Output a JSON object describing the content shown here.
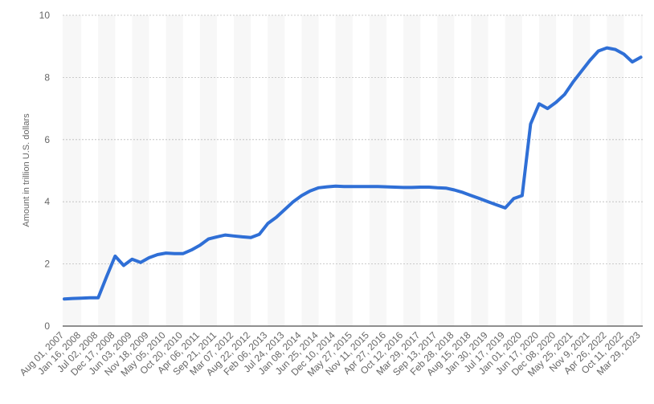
{
  "chart_data": {
    "type": "line",
    "y_label": "Amount in trillion U.S. dollars",
    "categories": [
      "Aug 01, 2007",
      null,
      "Jan 16, 2008",
      null,
      "Jul 02, 2008",
      null,
      "Dec 17, 2008",
      null,
      "Jun 03, 2009",
      null,
      "Nov 18, 2009",
      null,
      "May 05, 2010",
      null,
      "Oct 20, 2010",
      null,
      "Apr 06, 2011",
      null,
      "Sep 21, 2011",
      null,
      "Mar 07, 2012",
      null,
      "Aug 22, 2012",
      null,
      "Feb 06, 2013",
      null,
      "Jul 24, 2013",
      null,
      "Jan 08, 2014",
      null,
      "Jun 25, 2014",
      null,
      "Dec 10, 2014",
      null,
      "May 27, 2015",
      null,
      "Nov 11, 2015",
      null,
      "Apr 27, 2016",
      null,
      "Oct 12, 2016",
      null,
      "Mar 29, 2017",
      null,
      "Sep 13, 2017",
      null,
      "Feb 28, 2018",
      null,
      "Aug 15, 2018",
      null,
      "Jan 30, 2019",
      null,
      "Jul 17, 2019",
      null,
      "Jan 01, 2020",
      null,
      "Jun 17, 2020",
      null,
      "Dec 08, 2020",
      null,
      "May 25, 2021",
      null,
      "Nov 9, 2021",
      null,
      "Apr 26, 2022",
      null,
      "Oct 11, 2022",
      null,
      "Mar 29, 2023"
    ],
    "values": [
      0.87,
      0.89,
      0.9,
      0.91,
      0.91,
      1.6,
      2.25,
      1.95,
      2.15,
      2.05,
      2.2,
      2.3,
      2.35,
      2.33,
      2.33,
      2.45,
      2.6,
      2.8,
      2.87,
      2.93,
      2.9,
      2.87,
      2.85,
      2.95,
      3.3,
      3.5,
      3.75,
      4.0,
      4.2,
      4.35,
      4.45,
      4.48,
      4.5,
      4.49,
      4.49,
      4.49,
      4.49,
      4.49,
      4.48,
      4.47,
      4.46,
      4.46,
      4.47,
      4.47,
      4.45,
      4.44,
      4.38,
      4.3,
      4.2,
      4.1,
      4.0,
      3.9,
      3.8,
      4.1,
      4.2,
      6.5,
      7.15,
      7.0,
      7.2,
      7.45,
      7.85,
      8.2,
      8.55,
      8.85,
      8.95,
      8.9,
      8.75,
      8.5,
      8.65
    ],
    "color": "#2f6fd6",
    "ylim": [
      0,
      10
    ],
    "yticks": [
      0,
      2,
      4,
      6,
      8,
      10
    ],
    "grid": true
  }
}
